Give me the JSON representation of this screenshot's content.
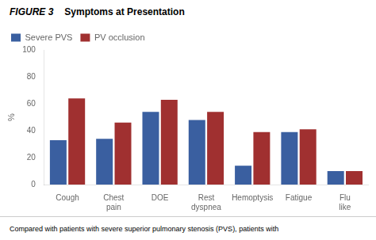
{
  "chart_data": {
    "type": "bar",
    "title": "Symptoms at Presentation",
    "annotations": [
      "FIGURE 3",
      "Compared with patients with severe superior pulmonary stenosis (PVS), patients with"
    ],
    "categories": [
      "Cough",
      "Chest\npain",
      "DOE",
      "Rest\ndyspnea",
      "Hemoptysis",
      "Fatigue",
      "Flu\nlike"
    ],
    "series": [
      {
        "name": "Severe PVS",
        "color": "#3a5fa0",
        "values": [
          33,
          34,
          54,
          48,
          14,
          39,
          10
        ]
      },
      {
        "name": "PV occlusion",
        "color": "#a03030",
        "values": [
          64,
          46,
          63,
          54,
          39,
          41,
          10
        ]
      }
    ],
    "ylabel": "%",
    "ylim": [
      0,
      100
    ],
    "yticks": [
      0,
      20,
      40,
      60,
      80,
      100
    ],
    "grid": false,
    "legend": "upper left"
  }
}
